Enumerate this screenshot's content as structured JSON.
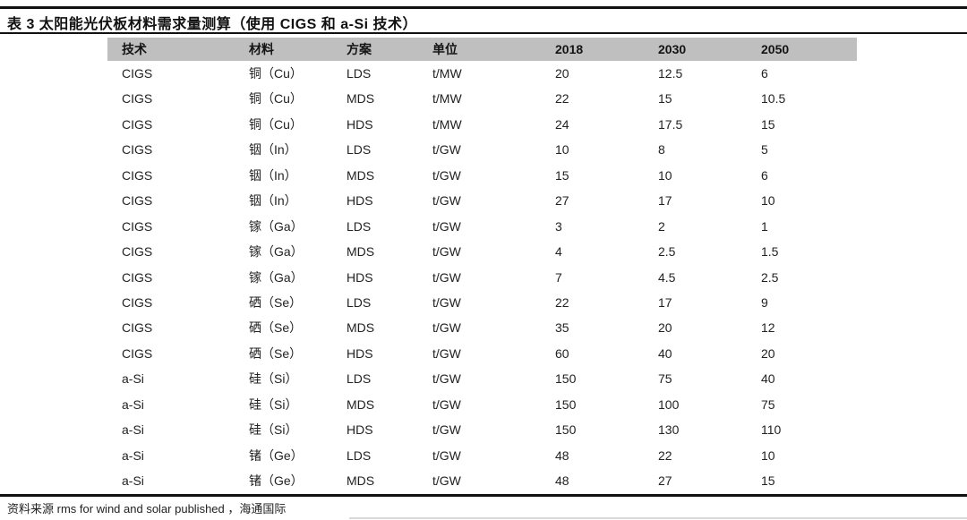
{
  "title": "表 3  太阳能光伏板材料需求量测算（使用 CIGS 和 a-Si 技术）",
  "table": {
    "header_bg": "#bfbfbf",
    "headers": [
      "技术",
      "材料",
      "方案",
      "单位",
      "2018",
      "2030",
      "2050"
    ],
    "column_keys": [
      "tech",
      "material",
      "scheme",
      "unit",
      "y2018",
      "y2030",
      "y2050"
    ],
    "rows": [
      [
        "CIGS",
        "铜（Cu）",
        "LDS",
        "t/MW",
        "20",
        "12.5",
        "6"
      ],
      [
        "CIGS",
        "铜（Cu）",
        "MDS",
        "t/MW",
        "22",
        "15",
        "10.5"
      ],
      [
        "CIGS",
        "铜（Cu）",
        "HDS",
        "t/MW",
        "24",
        "17.5",
        "15"
      ],
      [
        "CIGS",
        "铟（In）",
        "LDS",
        "t/GW",
        "10",
        "8",
        "5"
      ],
      [
        "CIGS",
        "铟（In）",
        "MDS",
        "t/GW",
        "15",
        "10",
        "6"
      ],
      [
        "CIGS",
        "铟（In）",
        "HDS",
        "t/GW",
        "27",
        "17",
        "10"
      ],
      [
        "CIGS",
        "镓（Ga）",
        "LDS",
        "t/GW",
        "3",
        "2",
        "1"
      ],
      [
        "CIGS",
        "镓（Ga）",
        "MDS",
        "t/GW",
        "4",
        "2.5",
        "1.5"
      ],
      [
        "CIGS",
        "镓（Ga）",
        "HDS",
        "t/GW",
        "7",
        "4.5",
        "2.5"
      ],
      [
        "CIGS",
        "硒（Se）",
        "LDS",
        "t/GW",
        "22",
        "17",
        "9"
      ],
      [
        "CIGS",
        "硒（Se）",
        "MDS",
        "t/GW",
        "35",
        "20",
        "12"
      ],
      [
        "CIGS",
        "硒（Se）",
        "HDS",
        "t/GW",
        "60",
        "40",
        "20"
      ],
      [
        "a-Si",
        "硅（Si）",
        "LDS",
        "t/GW",
        "150",
        "75",
        "40"
      ],
      [
        "a-Si",
        "硅（Si）",
        "MDS",
        "t/GW",
        "150",
        "100",
        "75"
      ],
      [
        "a-Si",
        "硅（Si）",
        "HDS",
        "t/GW",
        "150",
        "130",
        "110"
      ],
      [
        "a-Si",
        "锗（Ge）",
        "LDS",
        "t/GW",
        "48",
        "22",
        "10"
      ],
      [
        "a-Si",
        "锗（Ge）",
        "MDS",
        "t/GW",
        "48",
        "27",
        "15"
      ]
    ]
  },
  "footer": {
    "source": "资料来源 rms for wind and solar published ，海通国际"
  }
}
